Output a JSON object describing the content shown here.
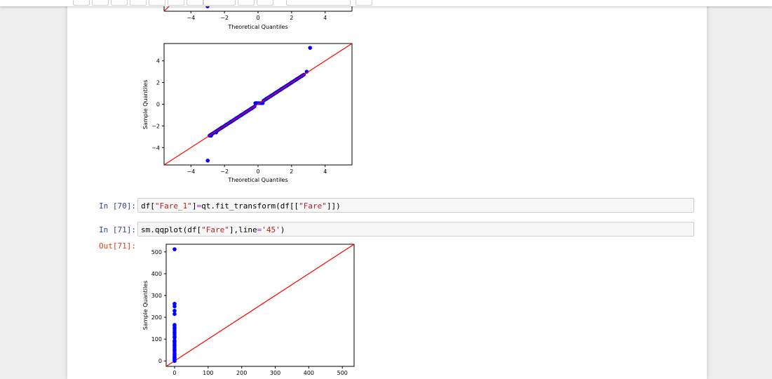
{
  "plots": {
    "top_partial": {
      "x_ticks": [
        "−4",
        "−2",
        "0",
        "2",
        "4"
      ],
      "xlabel": "Theoretical Quantiles"
    },
    "plot1": {
      "y_ticks": [
        "4",
        "2",
        "0",
        "−2",
        "−4"
      ],
      "x_ticks": [
        "−4",
        "−2",
        "0",
        "2",
        "4"
      ],
      "xlabel": "Theoretical Quantiles",
      "ylabel": "Sample Quantiles"
    },
    "plot2": {
      "y_ticks": [
        "500",
        "400",
        "300",
        "200",
        "100",
        "0"
      ],
      "x_ticks": [
        "0",
        "100",
        "200",
        "300",
        "400",
        "500"
      ],
      "ylabel": "Sample Quantiles"
    }
  },
  "cells": [
    {
      "prompt": "In [70]:",
      "code_parts": [
        "df[",
        "\"Fare_1\"",
        "]",
        "=",
        "qt.fit_transform(df[[",
        "\"Fare\"",
        "]])"
      ]
    },
    {
      "prompt": "In [71]:",
      "code_parts": [
        "sm.qqplot(df[",
        "\"Fare\"",
        "],line",
        "=",
        "'45'",
        ")"
      ]
    }
  ],
  "output": {
    "prompt": "Out[71]:"
  },
  "chart_data": [
    {
      "type": "scatter",
      "title": "",
      "xlabel": "Theoretical Quantiles",
      "ylabel": "Sample Quantiles",
      "xlim": [
        -5.6,
        5.6
      ],
      "ylim": [
        -5.6,
        5.6
      ],
      "reference_line": "45-degree",
      "colors": {
        "points": "#0000ff",
        "line": "#ff0000"
      },
      "points_description": "quantile-transformed Fare vs normal quantiles",
      "x": [
        -3.0,
        -2.8,
        -2.5,
        -2.2,
        -1.9,
        -1.6,
        -1.3,
        -1.0,
        -0.7,
        -0.4,
        -0.1,
        0.2,
        0.5,
        0.8,
        1.1,
        1.4,
        1.7,
        2.0,
        2.3,
        2.6,
        2.9,
        3.1
      ],
      "y": [
        -5.2,
        -2.9,
        -2.6,
        -2.2,
        -1.9,
        -1.6,
        -1.3,
        -1.0,
        -0.7,
        -0.4,
        0.1,
        0.1,
        0.5,
        0.8,
        1.1,
        1.4,
        1.7,
        2.0,
        2.3,
        2.6,
        3.0,
        5.2
      ]
    },
    {
      "type": "scatter",
      "title": "",
      "xlabel": "",
      "ylabel": "Sample Quantiles",
      "xlim": [
        -25,
        535
      ],
      "ylim": [
        -25,
        535
      ],
      "reference_line": "45-degree",
      "colors": {
        "points": "#0000ff",
        "line": "#ff0000"
      },
      "x": [
        0,
        0,
        0,
        0,
        0,
        0,
        0,
        0,
        0,
        0,
        0,
        0,
        0,
        0,
        0,
        0
      ],
      "y": [
        0,
        8,
        15,
        30,
        50,
        70,
        90,
        110,
        130,
        150,
        165,
        215,
        230,
        250,
        262,
        512
      ]
    }
  ]
}
